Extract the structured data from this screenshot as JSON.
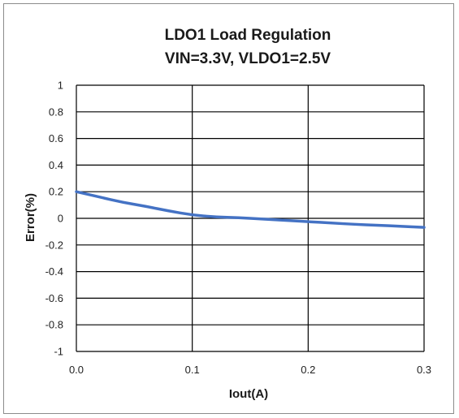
{
  "chart_data": {
    "type": "line",
    "title_lines": [
      "LDO1 Load Regulation",
      "VIN=3.3V, VLDO1=2.5V"
    ],
    "xlabel": "Iout(A)",
    "ylabel": "Error(%)",
    "xlim": [
      0,
      0.3
    ],
    "ylim": [
      -1,
      1
    ],
    "x_ticks": [
      "0.0",
      "0.1",
      "0.2",
      "0.3"
    ],
    "y_ticks": [
      "1",
      "0.8",
      "0.6",
      "0.4",
      "0.2",
      "0",
      "-0.2",
      "-0.4",
      "-0.6",
      "-0.8",
      "-1"
    ],
    "grid": true,
    "legend": "none",
    "series": [
      {
        "color": "#4472c4",
        "x": [
          0.0,
          0.02,
          0.04,
          0.06,
          0.08,
          0.1,
          0.12,
          0.14,
          0.16,
          0.18,
          0.2,
          0.22,
          0.24,
          0.26,
          0.28,
          0.3
        ],
        "y": [
          0.2,
          0.16,
          0.12,
          0.09,
          0.055,
          0.025,
          0.01,
          0.005,
          -0.005,
          -0.015,
          -0.025,
          -0.035,
          -0.045,
          -0.052,
          -0.06,
          -0.068
        ]
      }
    ]
  }
}
